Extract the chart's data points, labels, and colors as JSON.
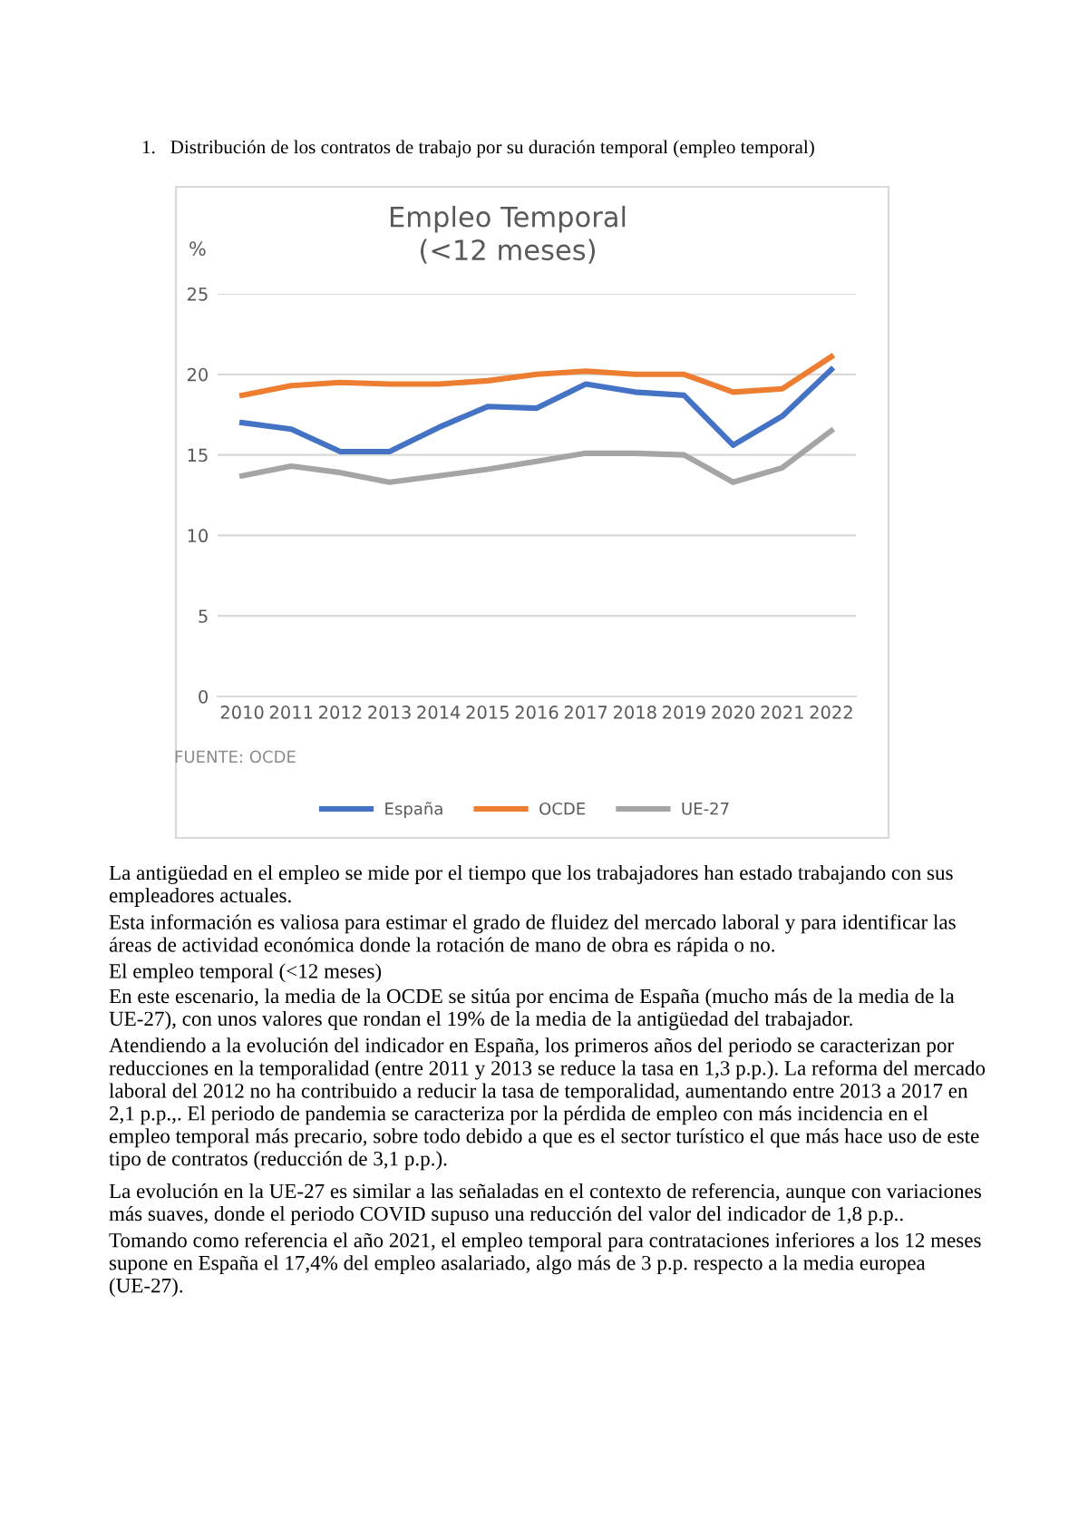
{
  "chart_data": {
    "type": "line",
    "title": "Empleo Temporal\n(<12 meses)",
    "ylabel": "%",
    "categories": [
      "2010",
      "2011",
      "2012",
      "2013",
      "2014",
      "2015",
      "2016",
      "2017",
      "2018",
      "2019",
      "2020",
      "2021",
      "2022"
    ],
    "series": [
      {
        "name": "España",
        "color": "#4472c4",
        "values": [
          17.0,
          16.6,
          15.2,
          15.2,
          16.7,
          18.0,
          17.9,
          19.4,
          18.9,
          18.7,
          15.6,
          17.4,
          20.3
        ]
      },
      {
        "name": "OCDE",
        "color": "#ed7d31",
        "values": [
          18.7,
          19.3,
          19.5,
          19.4,
          19.4,
          19.6,
          20.0,
          20.2,
          20.0,
          20.0,
          18.9,
          19.1,
          21.1
        ]
      },
      {
        "name": "UE-27",
        "color": "#a5a5a5",
        "values": [
          13.7,
          14.3,
          13.9,
          13.3,
          13.7,
          14.1,
          14.6,
          15.1,
          15.1,
          15.0,
          13.3,
          14.2,
          16.5
        ]
      }
    ],
    "ylim": [
      0,
      25
    ],
    "yticks": [
      0,
      5,
      10,
      15,
      20,
      25
    ],
    "grid": "y",
    "legend": "bottom",
    "marker": "none",
    "line_style": "solid",
    "annotations": [
      "1.   Distribución de los contratos de trabajo por su duración temporal (empleo temporal)",
      "FUENTE: OCDE",
      "La antigüedad en el empleo se mide por el tiempo que los trabajadores han estado trabajando con sus empleadores actuales.",
      "Esta información es valiosa para estimar el grado de fluidez del mercado laboral y para identificar las áreas de actividad económica donde la rotación de mano de obra es rápida o no.",
      "El empleo temporal (<12 meses)",
      "En este escenario, la media de la OCDE se sitúa por encima de España (mucho más de la media de la UE-27), con unos valores que rondan el 19% de la media de la antigüedad del trabajador.",
      "Atendiendo a la evolución del indicador en España, los primeros años del periodo se caracterizan por reducciones en la temporalidad (entre 2011 y 2013 se reduce la tasa en 1,3 p.p.). La reforma del mercado laboral del 2012 no ha contribuido a reducir la tasa de temporalidad, aumentando entre 2013 a 2017 en 2,1 p.p.,. El periodo de pandemia se caracteriza por la pérdida de empleo con más incidencia en el empleo temporal más precario, sobre todo debido a que es el sector turístico el que más hace uso de este tipo de contratos (reducción de 3,1 p.p.).",
      "La evolución en la UE-27 es similar a las señaladas en el contexto de referencia, aunque con variaciones más suaves, donde el periodo COVID supuso una reducción del valor del indicador de 1,8 p.p..",
      "Tomando como referencia el año 2021, el empleo temporal para contrataciones inferiores a los 12 meses supone en España el 17,4% del empleo asalariado, algo más de 3 p.p. respecto a la media europea (UE-27)."
    ]
  }
}
